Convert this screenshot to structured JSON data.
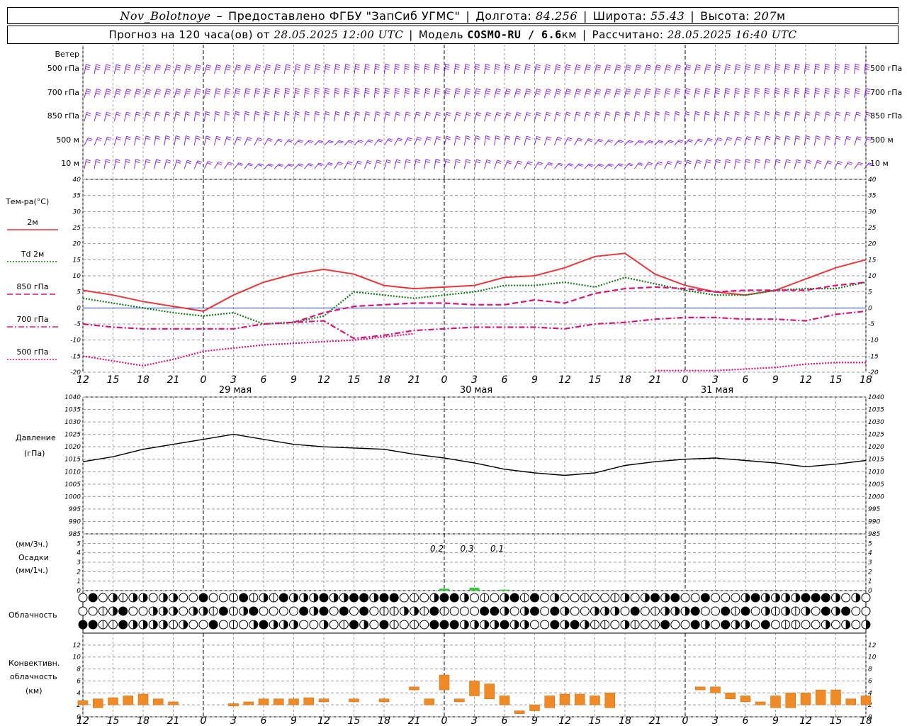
{
  "header": {
    "station": "Nov_Bolotnoye",
    "provider": "Предоставлено ФГБУ \"ЗапСиб УГМС\"",
    "lon_label": "Долгота:",
    "lon": "84.256",
    "lat_label": "Широта:",
    "lat": "55.43",
    "alt_label": "Высота:",
    "alt": "207",
    "alt_unit": "м",
    "forecast_prefix": "Прогноз на 120 часа(ов) от",
    "forecast_start": "28.05.2025 12:00 UTC",
    "model_label": "Модель",
    "model": "COSMO-RU / 6.6",
    "model_unit": "км",
    "calc_label": "Рассчитано:",
    "calc_time": "28.05.2025 16:40 UTC"
  },
  "time_axis": {
    "hour_labels": [
      "12",
      "15",
      "18",
      "21",
      "0",
      "3",
      "6",
      "9",
      "12",
      "15",
      "18",
      "21",
      "0",
      "3",
      "6",
      "9",
      "12",
      "15",
      "18",
      "21",
      "0",
      "3",
      "6",
      "9",
      "12",
      "15",
      "18"
    ],
    "day_labels": [
      "29 мая",
      "30 мая",
      "31 мая"
    ]
  },
  "wind_panel": {
    "title": "Ветер",
    "levels": [
      "500 гПа",
      "700 гПа",
      "850 гПа",
      "500 м",
      "10 м"
    ],
    "barb_color": "#8a2be2"
  },
  "temp_panel": {
    "title": "Тем-ра(°C)",
    "legend": [
      {
        "label": "2м",
        "color": "#e8373d",
        "style": "solid"
      },
      {
        "label": "Td  2м",
        "color": "#1a7a1a",
        "style": "dotted"
      },
      {
        "label": "850 гПа",
        "color": "#d6157a",
        "style": "dashed"
      },
      {
        "label": "700 гПа",
        "color": "#d6157a",
        "style": "dashdot"
      },
      {
        "label": "500 гПа",
        "color": "#d6157a",
        "style": "dotted"
      }
    ],
    "yticks": [
      "40",
      "35",
      "30",
      "25",
      "20",
      "15",
      "10",
      "5",
      "0",
      "-5",
      "-10",
      "-15",
      "-20"
    ]
  },
  "pressure_panel": {
    "title": "Давление",
    "unit": "(гПа)",
    "yticks": [
      "1040",
      "1035",
      "1030",
      "1025",
      "1020",
      "1015",
      "1010",
      "1005",
      "1000",
      "995",
      "990",
      "985"
    ]
  },
  "precip_panel": {
    "title_lines": [
      "(мм/3ч.)",
      "Осадки",
      "(мм/1ч.)"
    ],
    "yticks": [
      "5",
      "4",
      "3",
      "2",
      "1",
      "0"
    ],
    "annotations": [
      "0.2",
      "0.3",
      "0.1"
    ],
    "color": "#2ecc2e"
  },
  "cloud_panel": {
    "title": "Облачность"
  },
  "convective_panel": {
    "title_lines": [
      "Конвективн.",
      "облачность",
      "(км)"
    ],
    "yticks": [
      "12",
      "10",
      "8",
      "6",
      "4",
      "2",
      "0"
    ],
    "color": "#f08a24"
  },
  "chart_data": [
    {
      "type": "line",
      "title": "Тем-ра(°C)",
      "x": [
        0,
        3,
        6,
        9,
        12,
        15,
        18,
        21,
        24,
        27,
        30,
        33,
        36,
        39,
        42,
        45,
        48,
        51,
        54,
        57,
        60,
        63,
        66,
        69,
        72,
        75,
        78
      ],
      "x_labels": [
        "12",
        "15",
        "18",
        "21",
        "0",
        "3",
        "6",
        "9",
        "12",
        "15",
        "18",
        "21",
        "0",
        "3",
        "6",
        "9",
        "12",
        "15",
        "18",
        "21",
        "0",
        "3",
        "6",
        "9",
        "12",
        "15",
        "18"
      ],
      "ylim": [
        -20,
        40
      ],
      "series": [
        {
          "name": "2м",
          "values": [
            5.5,
            4,
            2,
            0.5,
            -1,
            4,
            8,
            10.5,
            12,
            10.5,
            7,
            6,
            6.5,
            7,
            9.5,
            10,
            12.5,
            16,
            17,
            10.5,
            7,
            5,
            4,
            5.5,
            9,
            12.5,
            15
          ]
        },
        {
          "name": "Td 2м",
          "values": [
            3,
            1.5,
            0,
            -1.5,
            -2.5,
            -1.5,
            -5,
            -4.5,
            -2.5,
            5,
            4,
            3,
            4,
            5,
            7,
            7,
            8,
            6.5,
            9.5,
            7.5,
            5.5,
            4,
            4,
            5.5,
            6,
            6,
            8
          ]
        },
        {
          "name": "850 гПа",
          "values": [
            null,
            null,
            null,
            null,
            null,
            null,
            null,
            -4.5,
            -1.5,
            0.5,
            1,
            1.5,
            1.5,
            1,
            1,
            2.5,
            1.5,
            4.5,
            6,
            6.5,
            6,
            5,
            5.5,
            5.5,
            5.5,
            7,
            8
          ]
        },
        {
          "name": "700 гПа",
          "values": [
            -5,
            -6,
            -6.5,
            -6.5,
            -6.5,
            -6.5,
            -5,
            -4.5,
            -4,
            -9.5,
            -8.5,
            -7,
            -6.5,
            -6,
            -6,
            -6,
            -6.5,
            -5,
            -4.5,
            -3.5,
            -3,
            -3,
            -3.5,
            -3.5,
            -4,
            -2,
            -1
          ]
        },
        {
          "name": "500 гПа",
          "values": [
            -15,
            -16.5,
            -18,
            -16,
            -13.5,
            -12.5,
            -11.5,
            -11,
            -10.5,
            -10,
            -9,
            -8,
            null,
            null,
            null,
            null,
            null,
            null,
            null,
            -19.5,
            -19.5,
            -19.5,
            -19,
            -18.5,
            -17.5,
            -17,
            -17
          ]
        }
      ]
    },
    {
      "type": "line",
      "title": "Давление",
      "x": [
        0,
        3,
        6,
        9,
        12,
        15,
        18,
        21,
        24,
        27,
        30,
        33,
        36,
        39,
        42,
        45,
        48,
        51,
        54,
        57,
        60,
        63,
        66,
        69,
        72,
        75,
        78
      ],
      "ylim": [
        985,
        1040
      ],
      "series": [
        {
          "name": "Давление",
          "values": [
            1014,
            1016,
            1019,
            1021,
            1023,
            1025,
            1023,
            1021,
            1020,
            1019.5,
            1019,
            1017,
            1015.5,
            1013.5,
            1011,
            1009.5,
            1008.5,
            1009.5,
            1012.5,
            1014,
            1015,
            1015.5,
            1014.5,
            1013.5,
            1012,
            1013,
            1014.5
          ]
        }
      ]
    },
    {
      "type": "bar",
      "title": "Осадки",
      "x": [
        36,
        39,
        42
      ],
      "ylim": [
        0,
        5
      ],
      "series": [
        {
          "name": "Осадки",
          "values": [
            0.2,
            0.3,
            0.1
          ]
        }
      ]
    },
    {
      "type": "bar",
      "title": "Конвективн. облачность (км)",
      "ylim": [
        0,
        13
      ],
      "bars": [
        {
          "x": 0,
          "low": 2,
          "high": 2.7
        },
        {
          "x": 1.5,
          "low": 1.5,
          "high": 3
        },
        {
          "x": 3,
          "low": 2,
          "high": 3.2
        },
        {
          "x": 4.5,
          "low": 2,
          "high": 3.5
        },
        {
          "x": 6,
          "low": 2,
          "high": 3.8
        },
        {
          "x": 7.5,
          "low": 2,
          "high": 3
        },
        {
          "x": 9,
          "low": 2,
          "high": 2.5
        },
        {
          "x": 15,
          "low": 1.8,
          "high": 2.2
        },
        {
          "x": 16.5,
          "low": 2,
          "high": 2.5
        },
        {
          "x": 18,
          "low": 2,
          "high": 3
        },
        {
          "x": 19.5,
          "low": 2,
          "high": 3
        },
        {
          "x": 21,
          "low": 2,
          "high": 3
        },
        {
          "x": 22.5,
          "low": 2,
          "high": 3.2
        },
        {
          "x": 24,
          "low": 2.5,
          "high": 3
        },
        {
          "x": 27,
          "low": 2.5,
          "high": 3
        },
        {
          "x": 30,
          "low": 2.5,
          "high": 3
        },
        {
          "x": 33,
          "low": 4.5,
          "high": 5
        },
        {
          "x": 34.5,
          "low": 2,
          "high": 3
        },
        {
          "x": 36,
          "low": 4.5,
          "high": 7
        },
        {
          "x": 37.5,
          "low": 2.5,
          "high": 3
        },
        {
          "x": 39,
          "low": 3.5,
          "high": 6
        },
        {
          "x": 40.5,
          "low": 3,
          "high": 5.5
        },
        {
          "x": 42,
          "low": 2,
          "high": 3.5
        },
        {
          "x": 43.5,
          "low": 0.5,
          "high": 1
        },
        {
          "x": 45,
          "low": 1,
          "high": 2
        },
        {
          "x": 46.5,
          "low": 1.5,
          "high": 3.5
        },
        {
          "x": 48,
          "low": 2,
          "high": 3.8
        },
        {
          "x": 49.5,
          "low": 2,
          "high": 3.8
        },
        {
          "x": 51,
          "low": 2,
          "high": 3.5
        },
        {
          "x": 52.5,
          "low": 1.5,
          "high": 4
        },
        {
          "x": 61.5,
          "low": 4.5,
          "high": 5
        },
        {
          "x": 63,
          "low": 4,
          "high": 5
        },
        {
          "x": 64.5,
          "low": 3,
          "high": 4
        },
        {
          "x": 66,
          "low": 2.5,
          "high": 3.5
        },
        {
          "x": 67.5,
          "low": 2,
          "high": 2.5
        },
        {
          "x": 69,
          "low": 1.5,
          "high": 3.5
        },
        {
          "x": 70.5,
          "low": 1.5,
          "high": 4
        },
        {
          "x": 72,
          "low": 2,
          "high": 4
        },
        {
          "x": 73.5,
          "low": 2,
          "high": 4.5
        },
        {
          "x": 75,
          "low": 2,
          "high": 4.5
        },
        {
          "x": 76.5,
          "low": 2,
          "high": 3
        },
        {
          "x": 78,
          "low": 2,
          "high": 3.5
        }
      ]
    }
  ]
}
